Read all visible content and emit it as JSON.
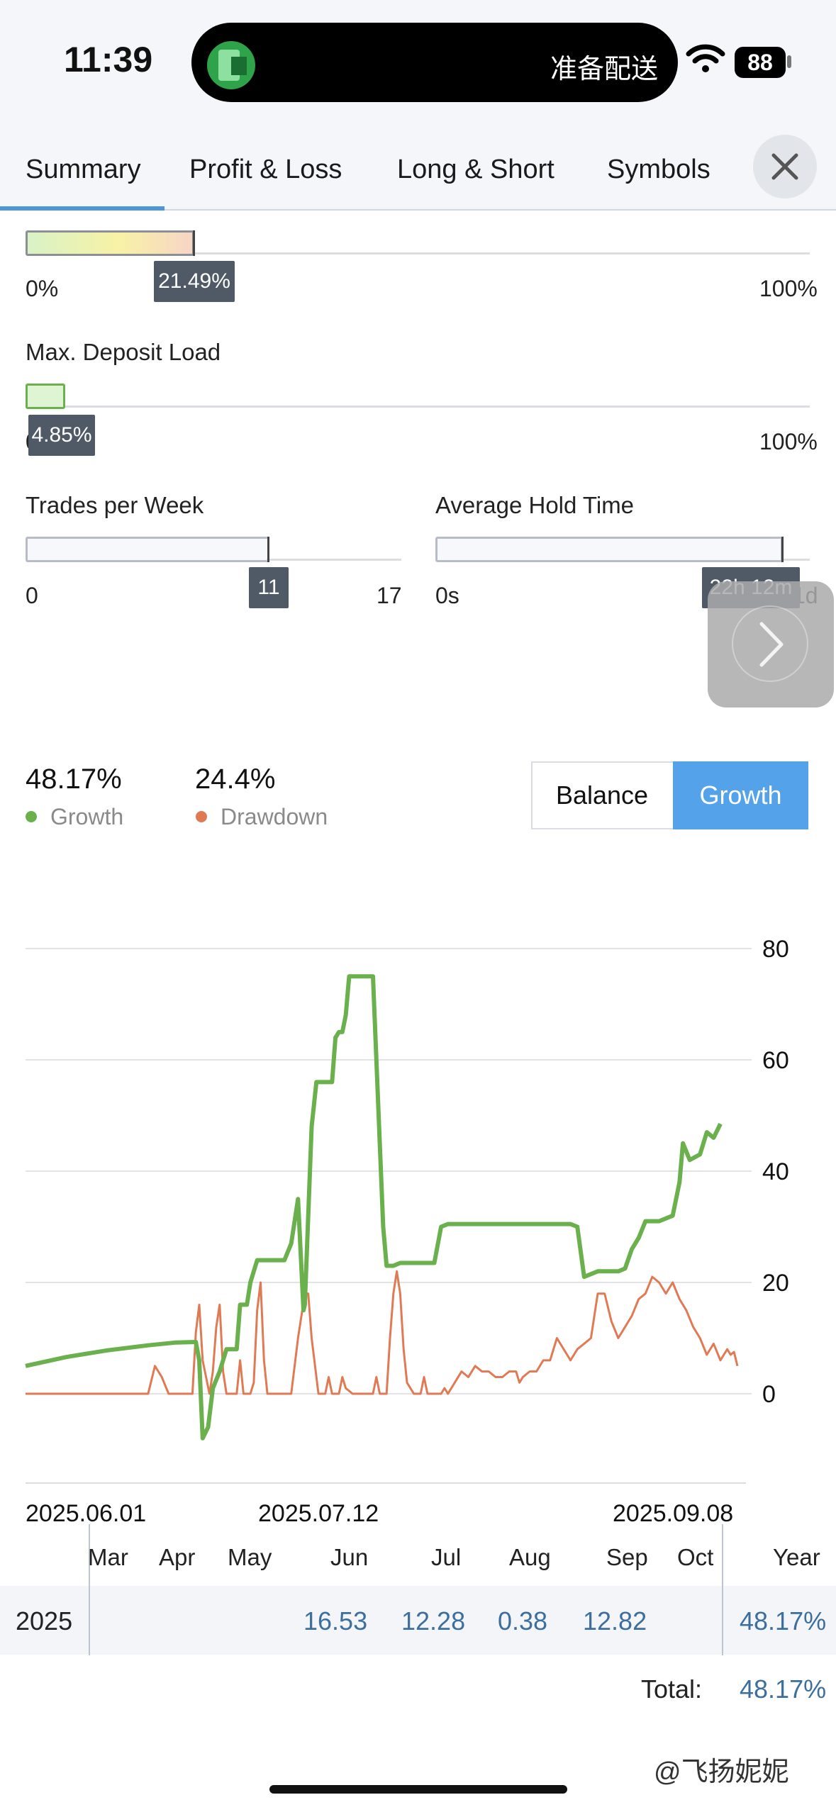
{
  "status_bar": {
    "time": "11:39",
    "island_text": "准备配送",
    "battery": "88"
  },
  "tabs": [
    {
      "label": "Summary",
      "active": true
    },
    {
      "label": "Profit & Loss",
      "active": false
    },
    {
      "label": "Long & Short",
      "active": false
    },
    {
      "label": "Symbols",
      "active": false
    }
  ],
  "gauges": {
    "first": {
      "value_label": "21.49%",
      "value": 21.49,
      "min": "0%",
      "max": "100%"
    },
    "deposit_load": {
      "title": "Max. Deposit Load",
      "value_label": "4.85%",
      "value": 4.85,
      "min": "0%",
      "max": "100%"
    },
    "trades_per_week": {
      "title": "Trades per Week",
      "value_label": "11",
      "value": 11,
      "min": "0",
      "max": "17"
    },
    "hold_time": {
      "title": "Average Hold Time",
      "value_label": "22h 12m",
      "min": "0s",
      "max": "1d"
    }
  },
  "stats": {
    "growth": {
      "value": "48.17%",
      "label": "Growth",
      "color": "#6ab04c"
    },
    "drawdown": {
      "value": "24.4%",
      "label": "Drawdown",
      "color": "#e07a55"
    }
  },
  "toggle": {
    "balance": "Balance",
    "growth": "Growth",
    "active": "growth",
    "accent": "#54a2ea"
  },
  "chart_data": {
    "type": "line",
    "y_ticks": [
      "80",
      "60",
      "40",
      "20",
      "0"
    ],
    "ylim": [
      -10,
      80
    ],
    "x_labels": [
      "2025.06.01",
      "2025.07.12",
      "2025.09.08"
    ],
    "grid": true,
    "series": [
      {
        "name": "Growth",
        "color": "#6ab04c",
        "points": [
          [
            0,
            5
          ],
          [
            6,
            6.6
          ],
          [
            12,
            7.8
          ],
          [
            18,
            8.7
          ],
          [
            22,
            9.2
          ],
          [
            25,
            9.3
          ],
          [
            25.5,
            6
          ],
          [
            26,
            -8
          ],
          [
            26.8,
            -6
          ],
          [
            27.5,
            1
          ],
          [
            28.5,
            4
          ],
          [
            29.5,
            8
          ],
          [
            31,
            8
          ],
          [
            31.5,
            16
          ],
          [
            32.5,
            16
          ],
          [
            33,
            20
          ],
          [
            34,
            24
          ],
          [
            37,
            24
          ],
          [
            38,
            24
          ],
          [
            39,
            27
          ],
          [
            40,
            35
          ],
          [
            40.8,
            15
          ],
          [
            41,
            16
          ],
          [
            42,
            48
          ],
          [
            42.7,
            56
          ],
          [
            44,
            56
          ],
          [
            45,
            56
          ],
          [
            45.5,
            64
          ],
          [
            46,
            65
          ],
          [
            46.5,
            65
          ],
          [
            47,
            68
          ],
          [
            47.5,
            75
          ],
          [
            51,
            75
          ],
          [
            51.5,
            60
          ],
          [
            52,
            45
          ],
          [
            52.5,
            30
          ],
          [
            53,
            23
          ],
          [
            54,
            23
          ],
          [
            55,
            23.5
          ],
          [
            59,
            23.5
          ],
          [
            60,
            23.5
          ],
          [
            61,
            30
          ],
          [
            62,
            30.5
          ],
          [
            68,
            30.5
          ],
          [
            72,
            30.5
          ],
          [
            80,
            30.5
          ],
          [
            81,
            30
          ],
          [
            82,
            21
          ],
          [
            84,
            22
          ],
          [
            86,
            22
          ],
          [
            87,
            22
          ],
          [
            88,
            22.5
          ],
          [
            89,
            26
          ],
          [
            90,
            28
          ],
          [
            91,
            31
          ],
          [
            93,
            31
          ],
          [
            95,
            32
          ],
          [
            96,
            38
          ],
          [
            96.5,
            45
          ],
          [
            97.5,
            42
          ],
          [
            99,
            43
          ],
          [
            100,
            47
          ],
          [
            101,
            46
          ],
          [
            102,
            48.5
          ]
        ]
      },
      {
        "name": "Drawdown",
        "color": "#e07a55",
        "points": [
          [
            0,
            0
          ],
          [
            18,
            0
          ],
          [
            19,
            5
          ],
          [
            20,
            3
          ],
          [
            21,
            0
          ],
          [
            24.5,
            0
          ],
          [
            25,
            11
          ],
          [
            25.5,
            16
          ],
          [
            26,
            6
          ],
          [
            27,
            0
          ],
          [
            27.5,
            4
          ],
          [
            28,
            12
          ],
          [
            28.5,
            16
          ],
          [
            29,
            4
          ],
          [
            29.5,
            0
          ],
          [
            31,
            0
          ],
          [
            31.5,
            6
          ],
          [
            32,
            0
          ],
          [
            33,
            0
          ],
          [
            33.5,
            2
          ],
          [
            34,
            15
          ],
          [
            34.5,
            20
          ],
          [
            35,
            6
          ],
          [
            35.5,
            0
          ],
          [
            39,
            0
          ],
          [
            40,
            10
          ],
          [
            41,
            18
          ],
          [
            41.5,
            18
          ],
          [
            42,
            10
          ],
          [
            43,
            0
          ],
          [
            44,
            0
          ],
          [
            44.5,
            3
          ],
          [
            45,
            0
          ],
          [
            46,
            0
          ],
          [
            46.5,
            3
          ],
          [
            47,
            1
          ],
          [
            48,
            0
          ],
          [
            50,
            0
          ],
          [
            51,
            0
          ],
          [
            51.5,
            3
          ],
          [
            52,
            0
          ],
          [
            53,
            0
          ],
          [
            53.5,
            10
          ],
          [
            54,
            18
          ],
          [
            54.5,
            22
          ],
          [
            55,
            18
          ],
          [
            55.5,
            8
          ],
          [
            56,
            2
          ],
          [
            57,
            0
          ],
          [
            58,
            0
          ],
          [
            58.5,
            3
          ],
          [
            59,
            0
          ],
          [
            60,
            0
          ],
          [
            61,
            0
          ],
          [
            61.5,
            1
          ],
          [
            62,
            0
          ],
          [
            63,
            2
          ],
          [
            64,
            4
          ],
          [
            65,
            3
          ],
          [
            66,
            5
          ],
          [
            67,
            4
          ],
          [
            68,
            4
          ],
          [
            69,
            3
          ],
          [
            70,
            3
          ],
          [
            71,
            4
          ],
          [
            72,
            4
          ],
          [
            72.5,
            2
          ],
          [
            73,
            3
          ],
          [
            74,
            4
          ],
          [
            75,
            4
          ],
          [
            76,
            6
          ],
          [
            77,
            6
          ],
          [
            78,
            10
          ],
          [
            79,
            8
          ],
          [
            80,
            6
          ],
          [
            81,
            8
          ],
          [
            82,
            9
          ],
          [
            83,
            10
          ],
          [
            84,
            18
          ],
          [
            85,
            18
          ],
          [
            86,
            13
          ],
          [
            87,
            10
          ],
          [
            88,
            12
          ],
          [
            89,
            14
          ],
          [
            90,
            17
          ],
          [
            91,
            18
          ],
          [
            92,
            21
          ],
          [
            93,
            20
          ],
          [
            94,
            18
          ],
          [
            95,
            20
          ],
          [
            96,
            17
          ],
          [
            97,
            15
          ],
          [
            98,
            12
          ],
          [
            99,
            10
          ],
          [
            100,
            7
          ],
          [
            101,
            9
          ],
          [
            102,
            6
          ],
          [
            103,
            8
          ],
          [
            103.5,
            7
          ],
          [
            104,
            7.5
          ],
          [
            104.5,
            5
          ]
        ]
      }
    ]
  },
  "monthly_table": {
    "headers": [
      "Mar",
      "Apr",
      "May",
      "Jun",
      "Jul",
      "Aug",
      "Sep",
      "Oct",
      "Year"
    ],
    "year": "2025",
    "values": {
      "Jun": "16.53",
      "Jul": "12.28",
      "Aug": "0.38",
      "Sep": "12.82"
    },
    "year_total": "48.17%",
    "total_label": "Total:",
    "total_value": "48.17%"
  },
  "watermark": "@飞扬妮妮"
}
